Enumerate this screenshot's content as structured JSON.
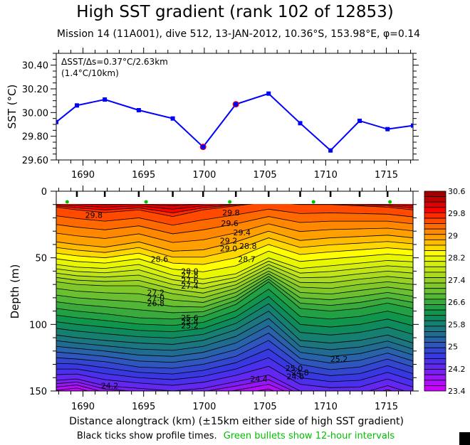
{
  "chart_data": [
    {
      "type": "line",
      "title": "High SST gradient (rank 102 of 12853)",
      "subtitle": "Mission 14 (11A001),  dive 512,  13-JAN-2012,  10.36°S, 153.98°E,  φ=0.14",
      "ylabel": "SST (°C)",
      "xlabel": "",
      "xlim": [
        1687.8,
        1717.2
      ],
      "ylim": [
        29.6,
        30.5
      ],
      "xticks": [
        1690,
        1695,
        1700,
        1705,
        1710,
        1715
      ],
      "xtick_labels": [
        "1690",
        "1695",
        "1700",
        "1705",
        "1710",
        "1715"
      ],
      "yticks": [
        29.6,
        29.8,
        30.0,
        30.2,
        30.4
      ],
      "ytick_labels": [
        "29.60",
        "29.80",
        "30.00",
        "30.20",
        "30.40"
      ],
      "annotation_line1": "ΔSST/Δs=0.37°C/2.63km",
      "annotation_line2": "(1.4°C/10km)",
      "series": [
        {
          "name": "SST",
          "color": "#0000ff",
          "x": [
            1687.8,
            1689.5,
            1691.8,
            1694.6,
            1697.4,
            1699.9,
            1702.6,
            1705.3,
            1707.9,
            1710.4,
            1712.8,
            1715.1,
            1717.2
          ],
          "y": [
            29.92,
            30.06,
            30.11,
            30.02,
            29.95,
            29.71,
            30.07,
            30.16,
            29.91,
            29.68,
            29.93,
            29.86,
            29.89
          ]
        }
      ],
      "highlighted_points": {
        "color": "#ff0000",
        "x": [
          1699.9,
          1702.6
        ],
        "y": [
          29.71,
          30.07
        ]
      }
    },
    {
      "type": "heatmap",
      "subtype": "filled-contour",
      "ylabel": "Depth (m)",
      "xlabel": "Distance alongtrack (km) (±15km either side of high SST gradient)",
      "xlim": [
        1687.8,
        1717.2
      ],
      "ylim": [
        150,
        0
      ],
      "xticks": [
        1690,
        1695,
        1700,
        1705,
        1710,
        1715
      ],
      "xtick_labels": [
        "1690",
        "1695",
        "1700",
        "1705",
        "1710",
        "1715"
      ],
      "yticks": [
        0,
        50,
        100,
        150
      ],
      "ytick_labels": [
        "0",
        "50",
        "100",
        "150"
      ],
      "data_top_depth": 10,
      "profile_times_x": [
        1689.5,
        1691.8,
        1694.6,
        1697.4,
        1699.9,
        1702.6,
        1705.3,
        1707.9,
        1710.4,
        1712.8,
        1715.1
      ],
      "green_bullets_x": [
        1688.7,
        1695.2,
        1702.1,
        1709.0,
        1715.3
      ],
      "colorbar": {
        "min": 23.4,
        "max": 30.6,
        "step": 0.2,
        "tick_labels": [
          "30.6",
          "29.8",
          "29",
          "28.2",
          "27.4",
          "26.6",
          "25.8",
          "25",
          "24.2",
          "23.4"
        ],
        "colors": [
          "#a00000",
          "#c00000",
          "#dd0000",
          "#ff0000",
          "#ff2a00",
          "#ff4a00",
          "#ff6a00",
          "#ff8800",
          "#ffa000",
          "#ffbb00",
          "#ffd800",
          "#ffff00",
          "#e8f700",
          "#d4ee10",
          "#c0e418",
          "#aadb1e",
          "#96d024",
          "#80c82a",
          "#6ac030",
          "#52b636",
          "#3aaa3c",
          "#22a044",
          "#10964c",
          "#0e8a5c",
          "#168070",
          "#1c7680",
          "#206c90",
          "#2862a8",
          "#2e56bc",
          "#3446d0",
          "#3838e0",
          "#4a30ea",
          "#6228f0",
          "#7a1ef4",
          "#9616f8",
          "#b40cfc",
          "#cc00ff"
        ]
      },
      "contour_labels": [
        {
          "text": "29.8",
          "x": 1690.9,
          "d": 18
        },
        {
          "text": "29.8",
          "x": 1702.2,
          "d": 16
        },
        {
          "text": "29.6",
          "x": 1702.1,
          "d": 24
        },
        {
          "text": "29.4",
          "x": 1703.1,
          "d": 31
        },
        {
          "text": "29.2",
          "x": 1702.0,
          "d": 37
        },
        {
          "text": "29.0",
          "x": 1702.0,
          "d": 43
        },
        {
          "text": "28.8",
          "x": 1703.6,
          "d": 41
        },
        {
          "text": "28.6",
          "x": 1696.3,
          "d": 51
        },
        {
          "text": "28.7",
          "x": 1703.5,
          "d": 51
        },
        {
          "text": "28.0",
          "x": 1698.8,
          "d": 60
        },
        {
          "text": "27.8",
          "x": 1698.8,
          "d": 63
        },
        {
          "text": "27.6",
          "x": 1698.8,
          "d": 67
        },
        {
          "text": "27.4",
          "x": 1698.8,
          "d": 71
        },
        {
          "text": "27.2",
          "x": 1696.0,
          "d": 76
        },
        {
          "text": "27.0",
          "x": 1696.0,
          "d": 80
        },
        {
          "text": "26.8",
          "x": 1696.0,
          "d": 84
        },
        {
          "text": "25.6",
          "x": 1698.8,
          "d": 95
        },
        {
          "text": "25.4",
          "x": 1698.8,
          "d": 98
        },
        {
          "text": "25.2",
          "x": 1698.8,
          "d": 101
        },
        {
          "text": "25.2",
          "x": 1711.1,
          "d": 126
        },
        {
          "text": "25.0",
          "x": 1707.4,
          "d": 133
        },
        {
          "text": "24.8",
          "x": 1707.9,
          "d": 136
        },
        {
          "text": "24.6",
          "x": 1707.5,
          "d": 139
        },
        {
          "text": "24.4",
          "x": 1704.5,
          "d": 141
        },
        {
          "text": "24.2",
          "x": 1692.2,
          "d": 146
        }
      ]
    }
  ],
  "footer": {
    "note_black": "Black ticks show profile times.",
    "note_green": "Green bullets show 12-hour intervals",
    "note_green_color": "#00c000"
  }
}
